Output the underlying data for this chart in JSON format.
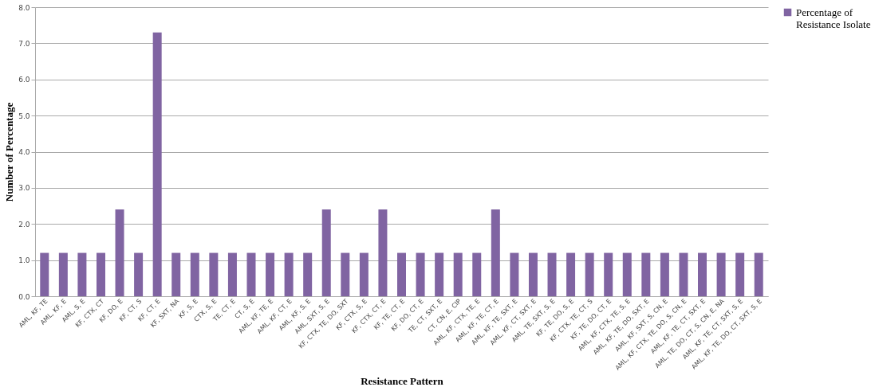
{
  "chart_data": {
    "type": "bar",
    "xlabel": "Resistance Pattern",
    "ylabel": "Number of Percentage",
    "categories": [
      "AML, KF, TE",
      "AML, KF, E",
      "AML, S, E",
      "KF, CTX, CT",
      "KF, DO, E",
      "KF, CT, S",
      "KF, CT, E",
      "KF, SXT, NA",
      "KF, S, E",
      "CTX, S, E",
      "TE, CT, E",
      "CT, S, E",
      "AML, KF, TE, E",
      "AML, KF, CT, E",
      "AML, KF, S, E",
      "AML, SXT, S, E",
      "KF, CTX, TE, DO, SXT",
      "KF, CTX, S, E",
      "KF, CTX, CT, E",
      "KF, TE, CT, E",
      "KF, DO, CT, E",
      "TE, CT, SXT, E",
      "CT, CN, E, CIP",
      "AML, KF, CTX, TE, E",
      "AML, KF, TE, CT, E",
      "AML, KF, TE, SXT, E",
      "AML, KF, CT, SXT, E",
      "AML, TE, SXT, S, E",
      "KF, TE, DO, S, E",
      "KF, CTX, TE, CT, S",
      "KF, TE, DO, CT, E",
      "AML, KF, CTX, TE, S, E",
      "AML, KF, TE, DO, SXT, E",
      "AML, KF, SXT, S, CN, E",
      "AML, KF, CTX, TE, DO, S, CN, E",
      "AML, KF, TE, CT, SXT, E",
      "AML, TE, DO, CT, S, CN, E, NA",
      "AML, KF, TE, CT, SXT, S, E",
      "AML, KF, TE, DO, CT, SXT, S, E"
    ],
    "series": [
      {
        "name": "Percentage of Resistance Isolate",
        "color": "#8064a2",
        "values": [
          1.2,
          1.2,
          1.2,
          1.2,
          2.4,
          1.2,
          7.3,
          1.2,
          1.2,
          1.2,
          1.2,
          1.2,
          1.2,
          1.2,
          1.2,
          2.4,
          1.2,
          1.2,
          2.4,
          1.2,
          1.2,
          1.2,
          1.2,
          1.2,
          2.4,
          1.2,
          1.2,
          1.2,
          1.2,
          1.2,
          1.2,
          1.2,
          1.2,
          1.2,
          1.2,
          1.2,
          1.2,
          1.2,
          1.2
        ]
      }
    ],
    "ylim": [
      0,
      8
    ],
    "yticks": [
      {
        "value": 0,
        "label": "0.0"
      },
      {
        "value": 1,
        "label": "1.0"
      },
      {
        "value": 2,
        "label": "2.0"
      },
      {
        "value": 3,
        "label": "3.0"
      },
      {
        "value": 4,
        "label": "4.0"
      },
      {
        "value": 5,
        "label": "5.0"
      },
      {
        "value": 6,
        "label": "6.0"
      },
      {
        "value": 7,
        "label": "7.0"
      },
      {
        "value": 8,
        "label": "8.0"
      }
    ],
    "grid": "y",
    "legend": "right"
  }
}
